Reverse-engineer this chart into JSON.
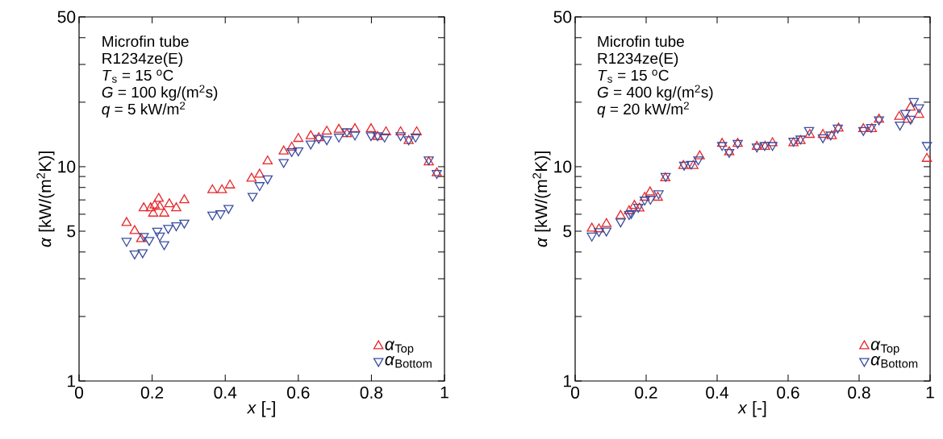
{
  "chart_data": [
    {
      "type": "scatter",
      "xlabel": "*x*  [-]",
      "ylabel": "*α*  [kW/(m$^{2}$K)]",
      "log": "y",
      "grid": false,
      "legend": "bottom right",
      "xlim": [
        0,
        1
      ],
      "ylim": [
        1,
        50
      ],
      "xticks": [
        0,
        0.2,
        0.4,
        0.6,
        0.8,
        1
      ],
      "yticks": [
        1,
        {
          "value": 2,
          "label": null
        },
        {
          "value": 3,
          "label": null
        },
        {
          "value": 4,
          "label": null
        },
        5,
        {
          "value": 6,
          "label": null
        },
        {
          "value": 7,
          "label": null
        },
        {
          "value": 8,
          "label": null
        },
        {
          "value": 9,
          "label": null
        },
        10,
        {
          "value": 20,
          "label": null
        },
        {
          "value": 30,
          "label": null
        },
        {
          "value": 40,
          "label": null
        },
        50
      ],
      "annotations": [
        "Microfin tube",
        "R1234ze(E)",
        "*T*$_{s}$ = 15 $^{o}$C",
        "*G* = 100 kg/(m$^{2}$s)",
        "*q* =   5 kW/m$^{2}$"
      ],
      "series": [
        {
          "name": "*α*$_{Top}$",
          "color": "#e8262a",
          "marker": "triangle",
          "x": [
            0.13,
            0.152,
            0.17,
            0.177,
            0.196,
            0.203,
            0.207,
            0.218,
            0.221,
            0.233,
            0.247,
            0.266,
            0.288,
            0.365,
            0.391,
            0.413,
            0.472,
            0.494,
            0.516,
            0.56,
            0.582,
            0.6,
            0.634,
            0.656,
            0.678,
            0.711,
            0.733,
            0.755,
            0.799,
            0.817,
            0.84,
            0.88,
            0.902,
            0.924,
            0.957,
            0.979
          ],
          "values": [
            5.47,
            5.02,
            4.6,
            6.41,
            6.41,
            6.05,
            6.6,
            7.09,
            6.5,
            6.05,
            6.69,
            6.41,
            6.99,
            7.78,
            7.78,
            8.19,
            8.81,
            9.2,
            10.6,
            11.8,
            12.3,
            13.5,
            13.9,
            13.6,
            14.6,
            14.9,
            14.2,
            15.0,
            15.0,
            13.8,
            14.5,
            14.5,
            13.2,
            14.5,
            10.5,
            9.33
          ]
        },
        {
          "name": "*α*$_{Bottom}$",
          "color": "#3a4ea0",
          "marker": "triangle-down",
          "x": [
            0.13,
            0.152,
            0.174,
            0.177,
            0.192,
            0.214,
            0.221,
            0.233,
            0.244,
            0.266,
            0.288,
            0.365,
            0.387,
            0.409,
            0.475,
            0.494,
            0.516,
            0.56,
            0.582,
            0.6,
            0.634,
            0.656,
            0.678,
            0.711,
            0.733,
            0.755,
            0.799,
            0.817,
            0.836,
            0.88,
            0.902,
            0.921,
            0.957,
            0.979
          ],
          "values": [
            4.5,
            3.93,
            3.98,
            4.74,
            4.54,
            5.02,
            4.76,
            4.34,
            5.17,
            5.32,
            5.47,
            5.97,
            6.05,
            6.41,
            7.3,
            8.19,
            8.81,
            10.5,
            11.8,
            11.9,
            12.8,
            13.6,
            13.4,
            13.8,
            14.6,
            14.1,
            14.0,
            14.0,
            13.8,
            14.0,
            13.4,
            13.8,
            10.8,
            9.33
          ]
        }
      ]
    },
    {
      "type": "scatter",
      "xlabel": "*x*  [-]",
      "ylabel": "*α*  [kW/(m$^{2}$K)]",
      "log": "y",
      "grid": false,
      "legend": "bottom right",
      "xlim": [
        0,
        1
      ],
      "ylim": [
        1,
        50
      ],
      "xticks": [
        0,
        0.2,
        0.4,
        0.6,
        0.8,
        1
      ],
      "yticks": [
        1,
        {
          "value": 2,
          "label": null
        },
        {
          "value": 3,
          "label": null
        },
        {
          "value": 4,
          "label": null
        },
        5,
        {
          "value": 6,
          "label": null
        },
        {
          "value": 7,
          "label": null
        },
        {
          "value": 8,
          "label": null
        },
        {
          "value": 9,
          "label": null
        },
        10,
        {
          "value": 20,
          "label": null
        },
        {
          "value": 30,
          "label": null
        },
        {
          "value": 40,
          "label": null
        },
        50
      ],
      "annotations": [
        "Microfin tube",
        "R1234ze(E)",
        "*T*$_{s}$ = 15 $^{o}$C",
        "*G* = 400 kg/(m$^{2}$s)",
        "*q* =   20 kW/m$^{2}$"
      ],
      "series": [
        {
          "name": "*α*$_{Top}$",
          "color": "#e8262a",
          "marker": "triangle",
          "x": [
            0.047,
            0.067,
            0.088,
            0.128,
            0.152,
            0.167,
            0.181,
            0.196,
            0.211,
            0.233,
            0.254,
            0.305,
            0.333,
            0.351,
            0.414,
            0.434,
            0.458,
            0.512,
            0.535,
            0.556,
            0.615,
            0.635,
            0.661,
            0.698,
            0.723,
            0.742,
            0.812,
            0.836,
            0.856,
            0.913,
            0.937,
            0.945,
            0.969,
            0.991
          ],
          "values": [
            5.15,
            5.11,
            5.41,
            5.9,
            6.21,
            6.58,
            6.39,
            7.18,
            7.6,
            7.18,
            8.84,
            10.1,
            10.1,
            11.2,
            12.8,
            11.7,
            12.8,
            12.4,
            12.4,
            12.9,
            12.9,
            13.2,
            14.1,
            14.1,
            13.9,
            15.1,
            15.0,
            15.0,
            16.6,
            17.1,
            16.6,
            18.9,
            17.5,
            10.9
          ]
        },
        {
          "name": "*α*$_{Bottom}$",
          "color": "#3a4ea0",
          "marker": "triangle-down",
          "x": [
            0.047,
            0.067,
            0.088,
            0.128,
            0.152,
            0.158,
            0.178,
            0.196,
            0.212,
            0.235,
            0.255,
            0.307,
            0.327,
            0.347,
            0.414,
            0.434,
            0.458,
            0.512,
            0.534,
            0.556,
            0.615,
            0.635,
            0.659,
            0.698,
            0.72,
            0.74,
            0.812,
            0.834,
            0.856,
            0.915,
            0.93,
            0.945,
            0.954,
            0.969,
            0.991
          ],
          "values": [
            4.76,
            5.0,
            5.03,
            5.54,
            6.0,
            6.07,
            6.49,
            7.01,
            7.07,
            7.5,
            9.04,
            10.2,
            10.3,
            10.8,
            12.6,
            11.7,
            12.9,
            12.4,
            12.6,
            12.6,
            13.2,
            13.5,
            14.8,
            13.7,
            14.1,
            15.2,
            14.8,
            15.3,
            16.6,
            15.7,
            17.8,
            16.7,
            20.2,
            18.9,
            12.6
          ]
        }
      ]
    }
  ]
}
